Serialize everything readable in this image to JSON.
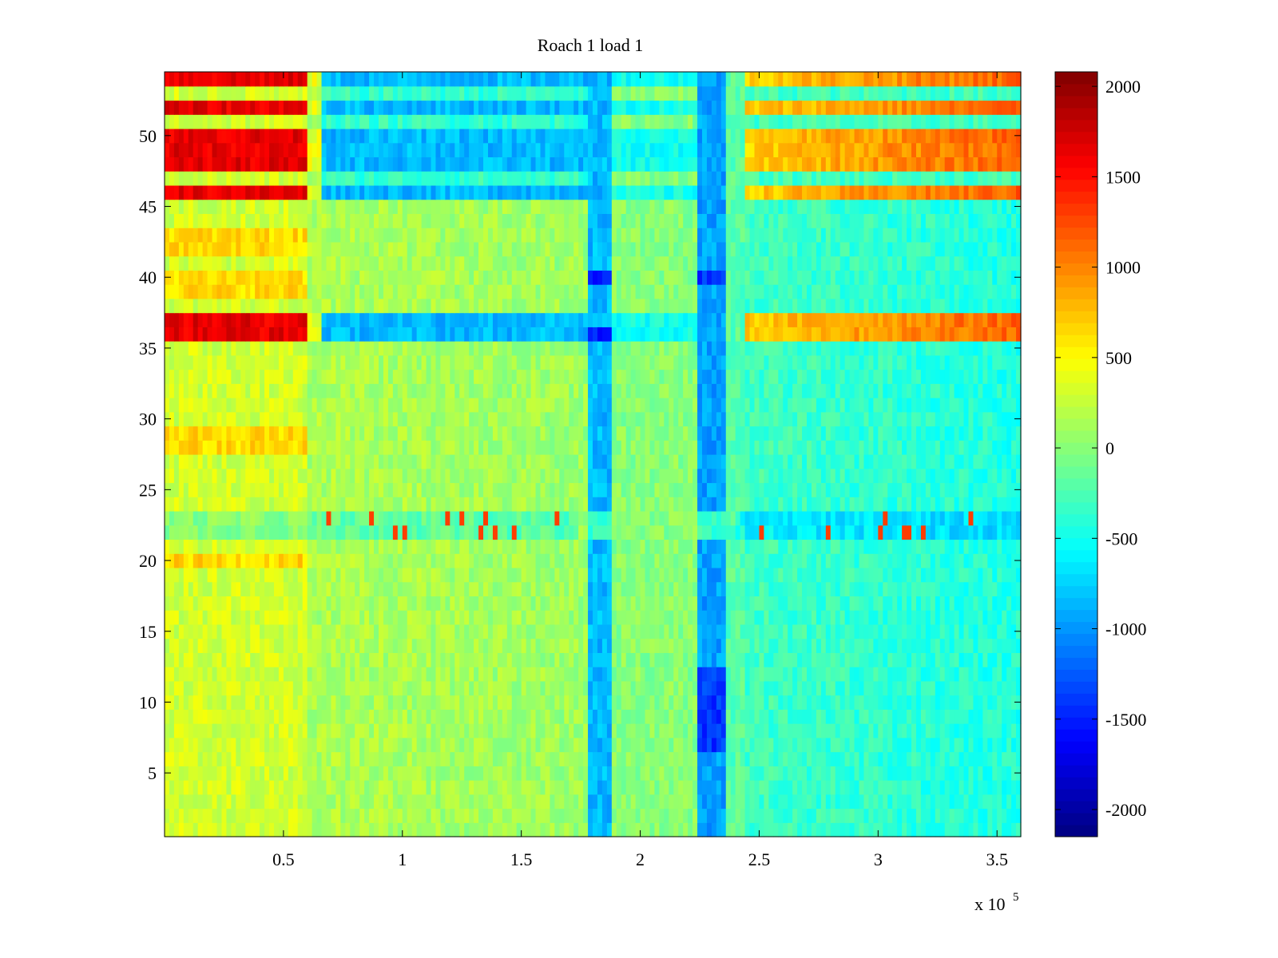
{
  "chart_data": {
    "type": "heatmap",
    "title": "Roach 1 load 1",
    "xlabel": "",
    "ylabel": "",
    "x_multiplier_label": "x 10",
    "x_multiplier_exponent": "5",
    "xlim": [
      0.0,
      3.6
    ],
    "ylim": [
      0.5,
      54.5
    ],
    "x_ticks": [
      0.5,
      1,
      1.5,
      2,
      2.5,
      3,
      3.5
    ],
    "x_tick_labels": [
      "0.5",
      "1",
      "1.5",
      "2",
      "2.5",
      "3",
      "3.5"
    ],
    "y_ticks": [
      5,
      10,
      15,
      20,
      25,
      30,
      35,
      40,
      45,
      50
    ],
    "y_tick_labels": [
      "5",
      "10",
      "15",
      "20",
      "25",
      "30",
      "35",
      "40",
      "45",
      "50"
    ],
    "rows": 54,
    "colormap": "jet",
    "colorbar": {
      "clim": [
        -2150,
        2080
      ],
      "ticks": [
        -2000,
        -1500,
        -1000,
        -500,
        0,
        500,
        1000,
        1500,
        2000
      ],
      "tick_labels": [
        "-2000",
        "-1500",
        "-1000",
        "-500",
        "0",
        "500",
        "1000",
        "1500",
        "2000"
      ],
      "placement": "right"
    },
    "regions": [
      {
        "x": [
          0.0,
          0.6
        ],
        "hot_rows": [
          36,
          37,
          46,
          48,
          49,
          50,
          52,
          54
        ],
        "value": 1800
      },
      {
        "x": [
          0.0,
          0.6
        ],
        "warm_rows": [
          20,
          28,
          29,
          39,
          40,
          42,
          43
        ],
        "value": 700
      },
      {
        "x": [
          0.65,
          1.78
        ],
        "cold_rows": [
          36,
          37,
          46,
          48,
          49,
          50,
          52,
          54
        ],
        "value": -900
      },
      {
        "x": [
          1.78,
          1.88
        ],
        "value": -800
      },
      {
        "x": [
          2.25,
          2.35
        ],
        "value": -850
      },
      {
        "x": [
          2.45,
          3.6
        ],
        "warm_rows": [
          36,
          37,
          46,
          48,
          49,
          50,
          52,
          54
        ],
        "value": 750
      },
      {
        "x": [
          2.45,
          3.6
        ],
        "value": -300
      }
    ]
  }
}
